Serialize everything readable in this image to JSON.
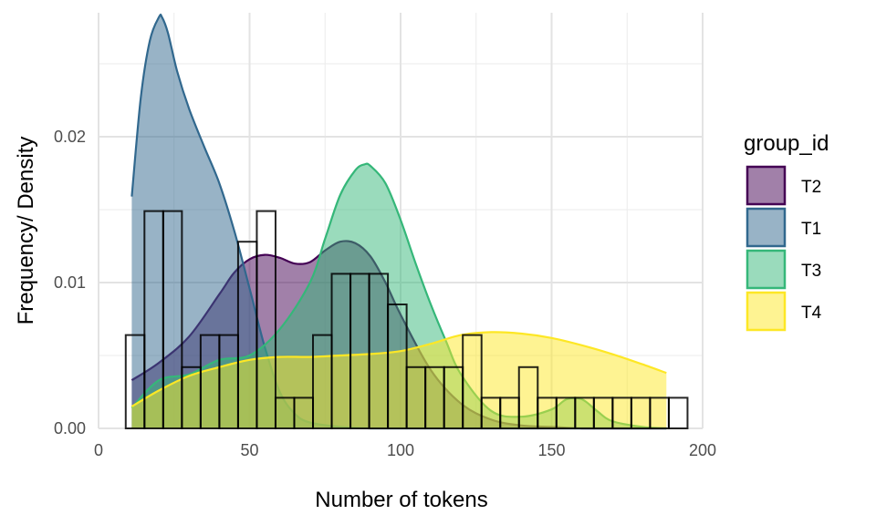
{
  "chart_data": {
    "type": "area",
    "title": "",
    "xlabel": "Number of tokens",
    "ylabel": "Frequency/ Density",
    "xlim": [
      0,
      200
    ],
    "ylim": [
      0,
      0.0285
    ],
    "x_ticks": [
      0,
      50,
      100,
      150,
      200
    ],
    "x_tick_labels": [
      "0",
      "50",
      "100",
      "150",
      "200"
    ],
    "y_ticks": [
      0,
      0.01,
      0.02
    ],
    "y_tick_labels": [
      "0.00",
      "0.01",
      "0.02"
    ],
    "grid": true,
    "legend": {
      "title": "group_id",
      "position": "right",
      "entries": [
        "T2",
        "T1",
        "T3",
        "T4"
      ]
    },
    "histogram": {
      "bin_width": 6.2,
      "bins": [
        {
          "x0": 9,
          "x1": 15.2,
          "y": 0.0064
        },
        {
          "x0": 15.2,
          "x1": 21.4,
          "y": 0.0149
        },
        {
          "x0": 21.4,
          "x1": 27.6,
          "y": 0.0149
        },
        {
          "x0": 27.6,
          "x1": 33.8,
          "y": 0.0042
        },
        {
          "x0": 33.8,
          "x1": 40.0,
          "y": 0.0064
        },
        {
          "x0": 40.0,
          "x1": 46.2,
          "y": 0.0064
        },
        {
          "x0": 46.2,
          "x1": 52.4,
          "y": 0.0128
        },
        {
          "x0": 52.4,
          "x1": 58.6,
          "y": 0.0149
        },
        {
          "x0": 58.6,
          "x1": 64.8,
          "y": 0.0021
        },
        {
          "x0": 64.8,
          "x1": 71.0,
          "y": 0.0021
        },
        {
          "x0": 71.0,
          "x1": 77.2,
          "y": 0.0064
        },
        {
          "x0": 77.2,
          "x1": 83.4,
          "y": 0.0106
        },
        {
          "x0": 83.4,
          "x1": 89.6,
          "y": 0.0106
        },
        {
          "x0": 89.6,
          "x1": 95.8,
          "y": 0.0106
        },
        {
          "x0": 95.8,
          "x1": 102.0,
          "y": 0.0085
        },
        {
          "x0": 102.0,
          "x1": 108.2,
          "y": 0.0042
        },
        {
          "x0": 108.2,
          "x1": 114.4,
          "y": 0.0042
        },
        {
          "x0": 114.4,
          "x1": 120.6,
          "y": 0.0042
        },
        {
          "x0": 120.6,
          "x1": 126.8,
          "y": 0.0064
        },
        {
          "x0": 126.8,
          "x1": 133.0,
          "y": 0.0021
        },
        {
          "x0": 133.0,
          "x1": 139.2,
          "y": 0.0021
        },
        {
          "x0": 139.2,
          "x1": 145.4,
          "y": 0.0042
        },
        {
          "x0": 145.4,
          "x1": 151.6,
          "y": 0.0021
        },
        {
          "x0": 151.6,
          "x1": 157.8,
          "y": 0.0021
        },
        {
          "x0": 157.8,
          "x1": 164.0,
          "y": 0.0021
        },
        {
          "x0": 164.0,
          "x1": 170.2,
          "y": 0.0021
        },
        {
          "x0": 170.2,
          "x1": 176.4,
          "y": 0.0021
        },
        {
          "x0": 176.4,
          "x1": 182.6,
          "y": 0.0021
        },
        {
          "x0": 182.6,
          "x1": 188.8,
          "y": 0.0021
        },
        {
          "x0": 188.8,
          "x1": 195.0,
          "y": 0.0021
        }
      ]
    },
    "series": [
      {
        "name": "T2",
        "fill": "#440154",
        "stroke": "#440154",
        "opacity": 0.5,
        "x": [
          11,
          20,
          30,
          40,
          45,
          50,
          55,
          60,
          65,
          70,
          75,
          80,
          85,
          90,
          95,
          100,
          110,
          120,
          130,
          140,
          150,
          160,
          170,
          180,
          188
        ],
        "y": [
          0.0033,
          0.0045,
          0.0063,
          0.0092,
          0.0107,
          0.0116,
          0.0119,
          0.0117,
          0.0113,
          0.0114,
          0.0122,
          0.0128,
          0.0127,
          0.0118,
          0.01,
          0.0078,
          0.004,
          0.0017,
          0.0006,
          0.0002,
          0.0001,
          0.0,
          0.0,
          0.0,
          0.0
        ]
      },
      {
        "name": "T1",
        "fill": "#31688E",
        "stroke": "#31688E",
        "opacity": 0.5,
        "x": [
          11,
          14,
          17,
          20,
          21,
          23,
          26,
          30,
          35,
          40,
          45,
          50,
          55,
          60,
          65,
          70,
          80,
          90,
          100,
          110,
          120,
          130,
          140,
          150,
          160,
          170,
          180,
          188
        ],
        "y": [
          0.0159,
          0.0227,
          0.0266,
          0.0282,
          0.0282,
          0.0271,
          0.0245,
          0.0219,
          0.0193,
          0.0168,
          0.0135,
          0.0096,
          0.0056,
          0.0025,
          0.001,
          0.0004,
          0.0001,
          0.0,
          0.0,
          0.0,
          0.0,
          0.0,
          0.0,
          0.0,
          0.0,
          0.0,
          0.0,
          0.0
        ]
      },
      {
        "name": "T3",
        "fill": "#35B779",
        "stroke": "#35B779",
        "opacity": 0.5,
        "x": [
          11,
          20,
          30,
          40,
          50,
          60,
          70,
          75,
          80,
          85,
          88,
          90,
          95,
          100,
          105,
          110,
          115,
          120,
          130,
          140,
          150,
          155,
          160,
          165,
          170,
          180,
          188
        ],
        "y": [
          0.0014,
          0.0033,
          0.0037,
          0.0047,
          0.005,
          0.0068,
          0.01,
          0.013,
          0.016,
          0.0177,
          0.0181,
          0.018,
          0.0168,
          0.0143,
          0.0113,
          0.0085,
          0.006,
          0.0037,
          0.0012,
          0.0008,
          0.0013,
          0.002,
          0.002,
          0.0012,
          0.0005,
          0.0001,
          0.0
        ]
      },
      {
        "name": "T4",
        "fill": "#FDE725",
        "stroke": "#FDE725",
        "opacity": 0.5,
        "x": [
          11,
          20,
          30,
          40,
          50,
          60,
          70,
          80,
          90,
          100,
          110,
          120,
          130,
          140,
          150,
          160,
          170,
          180,
          188
        ],
        "y": [
          0.0015,
          0.0026,
          0.0036,
          0.0042,
          0.0047,
          0.0049,
          0.0049,
          0.005,
          0.0051,
          0.0053,
          0.0058,
          0.0064,
          0.0066,
          0.0065,
          0.0062,
          0.0057,
          0.0051,
          0.0044,
          0.0038
        ]
      }
    ],
    "curve_overlays": [
      {
        "name": "T1-overlay",
        "stroke": "#1F4E6E",
        "x": [
          11,
          20,
          30,
          40,
          50,
          55,
          60,
          65,
          70,
          80
        ],
        "y": [
          0.0159,
          0.0282,
          0.0219,
          0.0168,
          0.0096,
          0.0056,
          0.0025,
          0.001,
          0.0004,
          0.0001
        ]
      },
      {
        "name": "T3-overlay",
        "stroke": "#2FA36B",
        "x": [
          11,
          20,
          30,
          40,
          50,
          60,
          70,
          80,
          88,
          100,
          110,
          120,
          130,
          140,
          150,
          160,
          170,
          188
        ],
        "y": [
          0.0014,
          0.0033,
          0.0037,
          0.0047,
          0.005,
          0.0068,
          0.01,
          0.016,
          0.0181,
          0.0143,
          0.0085,
          0.0037,
          0.0012,
          0.0008,
          0.0013,
          0.002,
          0.0005,
          0.0
        ]
      }
    ],
    "histogram_style": {
      "stroke": "#000000",
      "fill": "none"
    }
  }
}
